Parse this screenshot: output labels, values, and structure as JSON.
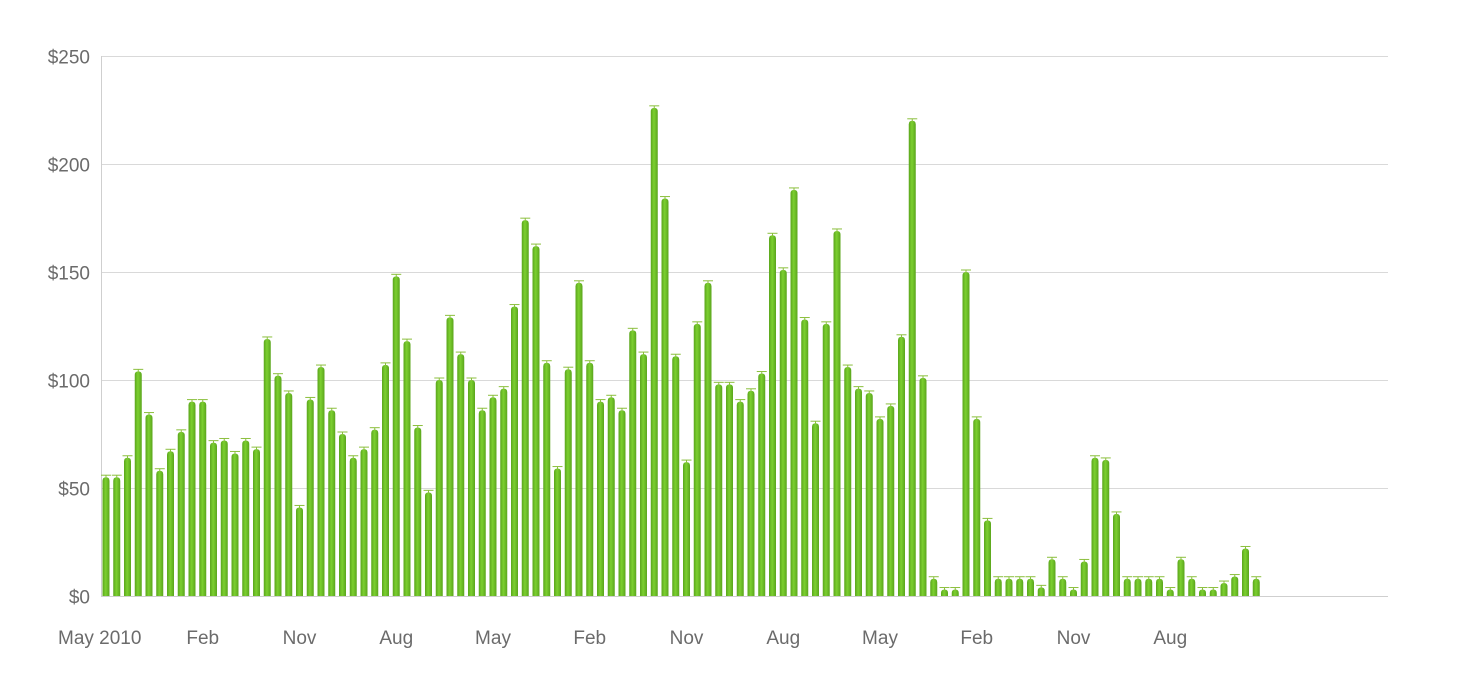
{
  "chart_data": {
    "type": "bar",
    "title": "",
    "xlabel": "",
    "ylabel": "",
    "ylim": [
      0,
      250
    ],
    "y_ticks": [
      "$0",
      "$50",
      "$100",
      "$150",
      "$200",
      "$250"
    ],
    "y_tick_values": [
      0,
      50,
      100,
      150,
      200,
      250
    ],
    "x_tick_labels": [
      {
        "label": "May 2010",
        "index": 0
      },
      {
        "label": "Feb",
        "index": 9
      },
      {
        "label": "Nov",
        "index": 18
      },
      {
        "label": "Aug",
        "index": 27
      },
      {
        "label": "May",
        "index": 36
      },
      {
        "label": "Feb",
        "index": 45
      },
      {
        "label": "Nov",
        "index": 54
      },
      {
        "label": "Aug",
        "index": 63
      },
      {
        "label": "May",
        "index": 72
      },
      {
        "label": "Feb",
        "index": 81
      },
      {
        "label": "Nov",
        "index": 90
      },
      {
        "label": "Aug",
        "index": 99
      }
    ],
    "grid": true,
    "legend": "none",
    "bar_color": "#6cc027",
    "bar_color_dark": "#5aa51c",
    "cap_color": "#8bbf3d",
    "grid_color": "#d9d9d9",
    "tick_label_color": "#6b6b6b",
    "values": [
      55,
      55,
      64,
      104,
      84,
      58,
      67,
      76,
      90,
      90,
      71,
      72,
      66,
      72,
      68,
      119,
      102,
      94,
      41,
      91,
      106,
      86,
      75,
      64,
      68,
      77,
      107,
      148,
      118,
      78,
      48,
      100,
      129,
      112,
      100,
      86,
      92,
      96,
      134,
      174,
      162,
      108,
      59,
      105,
      145,
      108,
      90,
      92,
      86,
      123,
      112,
      226,
      184,
      111,
      62,
      126,
      145,
      98,
      98,
      90,
      95,
      103,
      167,
      151,
      188,
      128,
      80,
      126,
      169,
      106,
      96,
      94,
      82,
      88,
      120,
      220,
      101,
      8,
      3,
      3,
      150,
      82,
      35,
      8,
      8,
      8,
      8,
      4,
      17,
      8,
      3,
      16,
      64,
      63,
      38,
      8,
      8,
      8,
      8,
      3,
      17,
      8,
      3,
      3,
      6,
      9,
      22,
      8
    ]
  }
}
